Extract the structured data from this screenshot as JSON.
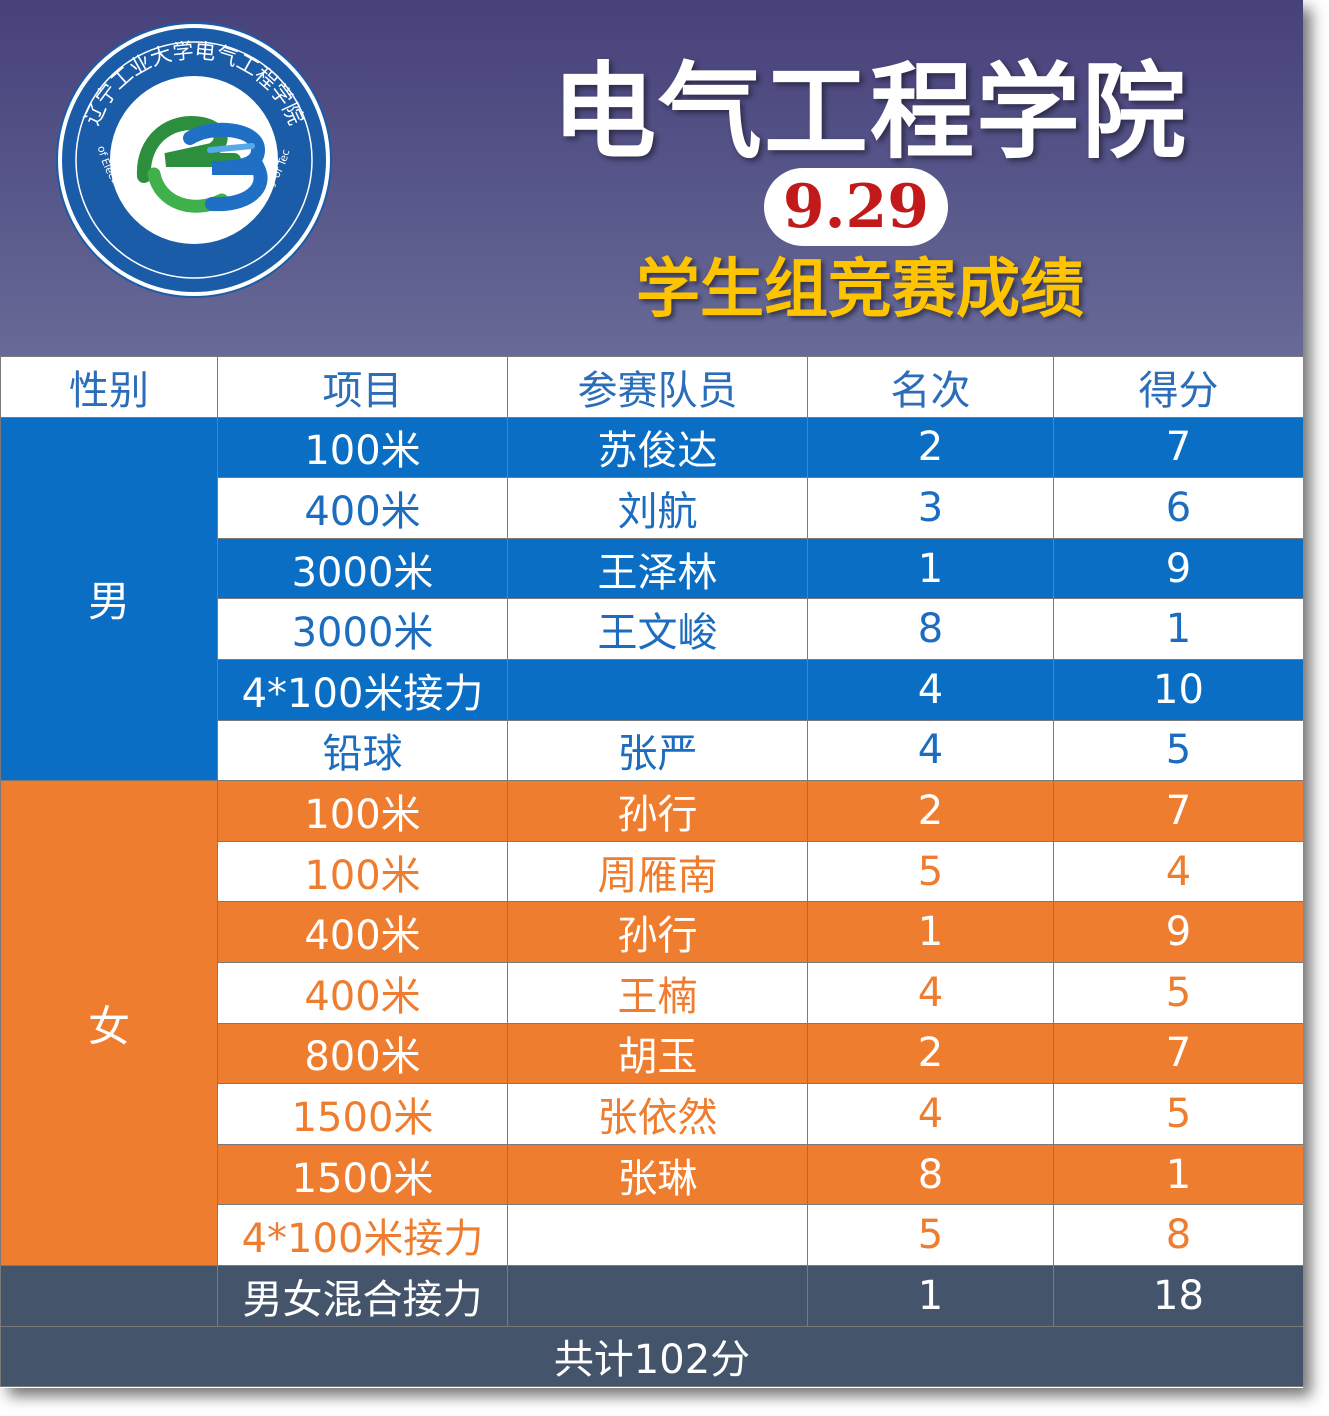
{
  "header": {
    "title": "电气工程学院",
    "date": "9.29",
    "subtitle": "学生组竞赛成绩",
    "logo": {
      "text_cn": "辽宁工业大学电气工程学院",
      "text_en": "School of Electrical Engineering Liaoning University of Technology",
      "icon": "ee-logo-icon"
    }
  },
  "table": {
    "columns": [
      "性别",
      "项目",
      "参赛队员",
      "名次",
      "得分"
    ],
    "groups": [
      {
        "gender": "男",
        "rows": [
          {
            "event": "100米",
            "athlete": "苏俊达",
            "rank": "2",
            "score": "7"
          },
          {
            "event": "400米",
            "athlete": "刘航",
            "rank": "3",
            "score": "6"
          },
          {
            "event": "3000米",
            "athlete": "王泽林",
            "rank": "1",
            "score": "9"
          },
          {
            "event": "3000米",
            "athlete": "王文峻",
            "rank": "8",
            "score": "1"
          },
          {
            "event": "4*100米接力",
            "athlete": "",
            "rank": "4",
            "score": "10"
          },
          {
            "event": "铅球",
            "athlete": "张严",
            "rank": "4",
            "score": "5"
          }
        ]
      },
      {
        "gender": "女",
        "rows": [
          {
            "event": "100米",
            "athlete": "孙行",
            "rank": "2",
            "score": "7"
          },
          {
            "event": "100米",
            "athlete": "周雁南",
            "rank": "5",
            "score": "4"
          },
          {
            "event": "400米",
            "athlete": "孙行",
            "rank": "1",
            "score": "9"
          },
          {
            "event": "400米",
            "athlete": "王楠",
            "rank": "4",
            "score": "5"
          },
          {
            "event": "800米",
            "athlete": "胡玉",
            "rank": "2",
            "score": "7"
          },
          {
            "event": "1500米",
            "athlete": "张依然",
            "rank": "4",
            "score": "5"
          },
          {
            "event": "1500米",
            "athlete": "张琳",
            "rank": "8",
            "score": "1"
          },
          {
            "event": "4*100米接力",
            "athlete": "",
            "rank": "5",
            "score": "8"
          }
        ]
      }
    ],
    "mixed": {
      "event": "男女混合接力",
      "athlete": "",
      "rank": "1",
      "score": "18"
    },
    "total": "共计102分"
  },
  "colors": {
    "header_top": "#47417a",
    "male": "#0b6ec5",
    "female": "#ef7d2f",
    "footer": "#44546a",
    "title_gold": "#ffc400",
    "date_red": "#c21a1a"
  }
}
